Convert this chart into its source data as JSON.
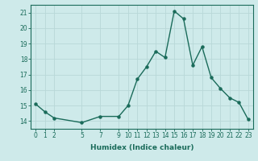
{
  "x": [
    0,
    1,
    2,
    5,
    7,
    9,
    10,
    11,
    12,
    13,
    14,
    15,
    16,
    17,
    18,
    19,
    20,
    21,
    22,
    23
  ],
  "y": [
    15.1,
    14.6,
    14.2,
    13.9,
    14.3,
    14.3,
    15.0,
    16.7,
    17.5,
    18.5,
    18.1,
    21.1,
    20.6,
    17.6,
    18.8,
    16.8,
    16.1,
    15.5,
    15.2,
    14.1
  ],
  "xlabel": "Humidex (Indice chaleur)",
  "xticks": [
    0,
    1,
    2,
    5,
    7,
    9,
    10,
    11,
    12,
    13,
    14,
    15,
    16,
    17,
    18,
    19,
    20,
    21,
    22,
    23
  ],
  "yticks": [
    14,
    15,
    16,
    17,
    18,
    19,
    20,
    21
  ],
  "ylim": [
    13.5,
    21.5
  ],
  "xlim": [
    -0.5,
    23.5
  ],
  "line_color": "#1a6b5a",
  "marker_color": "#1a6b5a",
  "bg_color": "#ceeaea",
  "grid_color": "#b8d8d8",
  "axis_color": "#1a6b5a",
  "tick_label_color": "#1a6b5a",
  "xlabel_color": "#1a6b5a",
  "xlabel_fontsize": 6.5,
  "tick_fontsize": 5.5,
  "line_width": 1.0,
  "marker_size": 2.2
}
